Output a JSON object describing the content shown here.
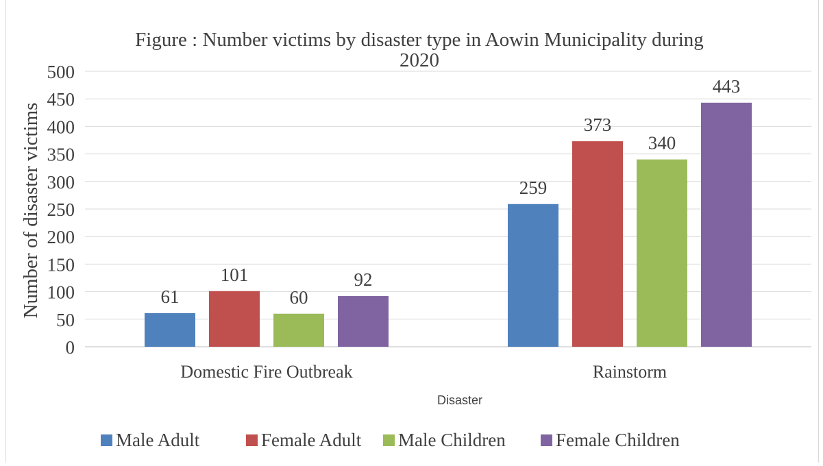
{
  "chart_data": {
    "type": "bar",
    "title_line1": "Figure : Number victims by disaster type in Aowin Municipality during",
    "title_line2": "2020",
    "xlabel": "Disaster",
    "ylabel": "Number of disaster victims",
    "ylim": [
      0,
      500
    ],
    "ytick_step": 50,
    "grid": true,
    "legend_position": "bottom",
    "categories": [
      "Domestic Fire Outbreak",
      "Rainstorm"
    ],
    "series": [
      {
        "name": "Male Adult",
        "color": "#4f81bd",
        "values": [
          61,
          259
        ]
      },
      {
        "name": "Female Adult",
        "color": "#c0504d",
        "values": [
          101,
          373
        ]
      },
      {
        "name": "Male Children",
        "color": "#9bbb59",
        "values": [
          60,
          340
        ]
      },
      {
        "name": "Female Children",
        "color": "#8064a2",
        "values": [
          92,
          443
        ]
      }
    ]
  }
}
